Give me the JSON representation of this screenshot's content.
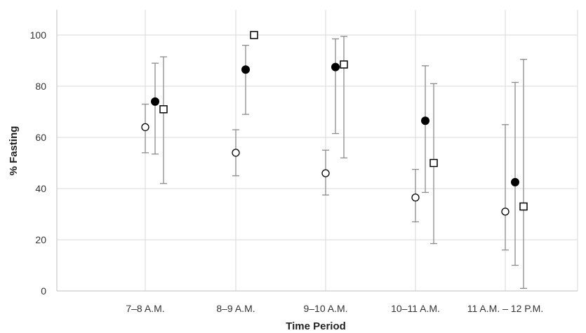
{
  "chart_data": {
    "type": "scatter",
    "xlabel": "Time Period",
    "ylabel": "% Fasting",
    "ylim": [
      0,
      100
    ],
    "yticks": [
      0,
      20,
      40,
      60,
      80,
      100
    ],
    "grid": true,
    "categories": [
      "7–8 A.M.",
      "8–9 A.M.",
      "9–10 A.M.",
      "10–11 A.M.",
      "11 A.M. – 12 P.M."
    ],
    "series": [
      {
        "marker": "open-circle",
        "values": [
          64,
          54,
          46,
          36.5,
          31
        ],
        "error_low": [
          54,
          45,
          37.5,
          27,
          16
        ],
        "error_high": [
          73,
          63,
          55,
          47.5,
          65
        ]
      },
      {
        "marker": "filled-circle",
        "values": [
          74,
          86.5,
          87.5,
          66.5,
          42.5
        ],
        "error_low": [
          53.5,
          69,
          61.5,
          38.5,
          10
        ],
        "error_high": [
          89,
          96,
          98.5,
          88,
          81.5
        ]
      },
      {
        "marker": "open-square",
        "values": [
          71,
          100,
          88.5,
          50,
          33
        ],
        "error_low": [
          42,
          100,
          52,
          18.5,
          1
        ],
        "error_high": [
          91.5,
          100,
          99.5,
          81,
          90.5
        ]
      }
    ],
    "colors": {
      "grid": "#d9d9d9",
      "axis": "#bfbfbf",
      "error_bar": "#8c8c8c",
      "marker": "#000000"
    }
  }
}
